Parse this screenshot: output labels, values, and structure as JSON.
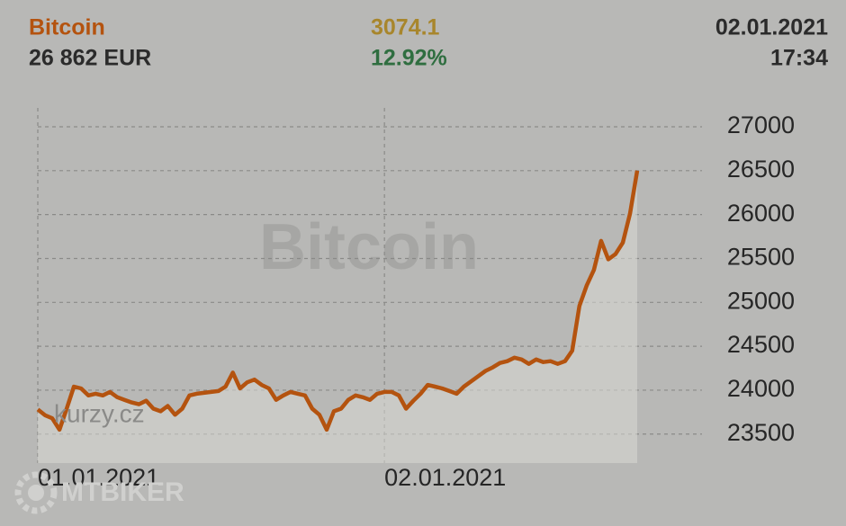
{
  "header": {
    "name": "Bitcoin",
    "price": "26 862 EUR",
    "change": "3074.1",
    "change_pct": "12.92%",
    "date": "02.01.2021",
    "time": "17:34"
  },
  "watermarks": {
    "center": "Bitcoin",
    "logo": "kurzy.cz",
    "site": "MTBIKER"
  },
  "chart_data": {
    "type": "line",
    "categories": [
      "01.01.2021",
      null,
      null,
      null,
      null,
      null,
      null,
      null,
      null,
      null,
      null,
      null,
      null,
      null,
      null,
      null,
      null,
      null,
      null,
      null,
      null,
      null,
      null,
      null,
      null,
      null,
      null,
      null,
      null,
      null,
      null,
      null,
      null,
      null,
      null,
      null,
      null,
      null,
      null,
      null,
      null,
      null,
      null,
      null,
      null,
      null,
      null,
      null,
      "02.01.2021",
      null,
      null,
      null,
      null,
      null,
      null,
      null,
      null,
      null,
      null,
      null,
      null,
      null,
      null,
      null,
      null,
      null,
      null,
      null,
      null,
      null,
      null,
      null,
      null,
      null,
      null,
      null,
      null,
      null,
      null,
      null,
      null,
      null,
      null,
      null
    ],
    "values": [
      23780,
      23715,
      23680,
      23550,
      23790,
      24040,
      24020,
      23940,
      23960,
      23940,
      23980,
      23920,
      23890,
      23860,
      23840,
      23880,
      23790,
      23760,
      23820,
      23720,
      23790,
      23940,
      23960,
      23970,
      23980,
      23990,
      24040,
      24200,
      24020,
      24090,
      24120,
      24060,
      24020,
      23890,
      23940,
      23980,
      23960,
      23940,
      23790,
      23720,
      23550,
      23760,
      23790,
      23890,
      23940,
      23920,
      23890,
      23960,
      23980,
      23980,
      23940,
      23790,
      23880,
      23960,
      24060,
      24040,
      24020,
      23990,
      23960,
      24040,
      24100,
      24160,
      24220,
      24260,
      24310,
      24330,
      24370,
      24350,
      24300,
      24350,
      24320,
      24330,
      24300,
      24330,
      24450,
      24960,
      25190,
      25370,
      25700,
      25490,
      25550,
      25680,
      26010,
      26500
    ],
    "color": "#b4530f",
    "ylim": [
      23170,
      27215
    ],
    "yticks": [
      23500,
      24000,
      24500,
      25000,
      25500,
      26000,
      26500,
      27000
    ],
    "grid": true
  }
}
